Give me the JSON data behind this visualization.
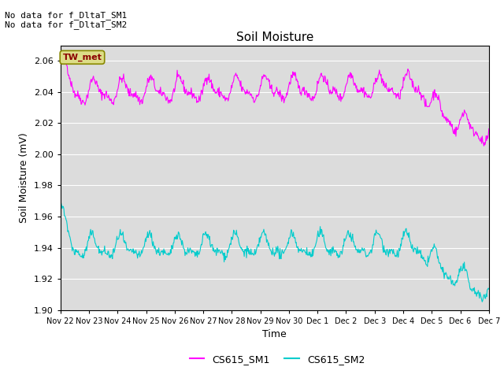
{
  "title": "Soil Moisture",
  "ylabel": "Soil Moisture (mV)",
  "xlabel": "Time",
  "ylim": [
    1.9,
    2.07
  ],
  "yticks": [
    1.9,
    1.92,
    1.94,
    1.96,
    1.98,
    2.0,
    2.02,
    2.04,
    2.06
  ],
  "bg_color": "#dcdcdc",
  "fig_color": "#ffffff",
  "line1_color": "#ff00ff",
  "line2_color": "#00cccc",
  "no_data_text1": "No data for f_DltaT_SM1",
  "no_data_text2": "No data for f_DltaT_SM2",
  "tw_met_label": "TW_met",
  "legend_label1": "CS615_SM1",
  "legend_label2": "CS615_SM2",
  "x_tick_labels": [
    "Nov 22",
    "Nov 23",
    "Nov 24",
    "Nov 25",
    "Nov 26",
    "Nov 27",
    "Nov 28",
    "Nov 29",
    "Nov 30",
    "Dec 1",
    "Dec 2",
    "Dec 3",
    "Dec 4",
    "Dec 5",
    "Dec 6",
    "Dec 7"
  ]
}
